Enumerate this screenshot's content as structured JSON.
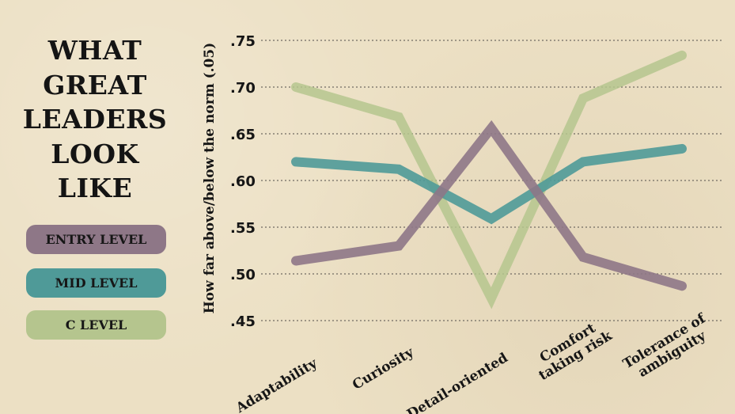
{
  "title": "WHAT\nGREAT\nLEADERS\nLOOK\nLIKE",
  "colors": {
    "background": "#ece0c4",
    "entry": "#8e7787",
    "mid": "#4f9a98",
    "c_level": "#b5c58e",
    "grid": "#6f6a62"
  },
  "legend": [
    {
      "label": "ENTRY LEVEL",
      "color": "#8e7787"
    },
    {
      "label": "MID LEVEL",
      "color": "#4f9a98"
    },
    {
      "label": "C LEVEL",
      "color": "#b5c58e"
    }
  ],
  "chart_data": {
    "type": "line",
    "title": "WHAT GREAT LEADERS LOOK LIKE",
    "ylabel": "How far above/below the norm (.05)",
    "xlabel": "",
    "categories": [
      "Adaptability",
      "Curiosity",
      "Detail-oriented",
      "Comfort\ntaking risk",
      "Tolerance of\nambiguity"
    ],
    "yticks": [
      ".75",
      ".70",
      ".65",
      ".60",
      ".55",
      ".50",
      ".45"
    ],
    "ylim": [
      0.45,
      0.75
    ],
    "grid": "horizontal dotted",
    "legend_position": "left",
    "series": [
      {
        "name": "C LEVEL",
        "values": [
          0.7,
          0.668,
          0.474,
          0.688,
          0.734
        ]
      },
      {
        "name": "MID LEVEL",
        "values": [
          0.62,
          0.612,
          0.559,
          0.62,
          0.634
        ]
      },
      {
        "name": "ENTRY LEVEL",
        "values": [
          0.514,
          0.53,
          0.656,
          0.518,
          0.487
        ]
      }
    ]
  }
}
